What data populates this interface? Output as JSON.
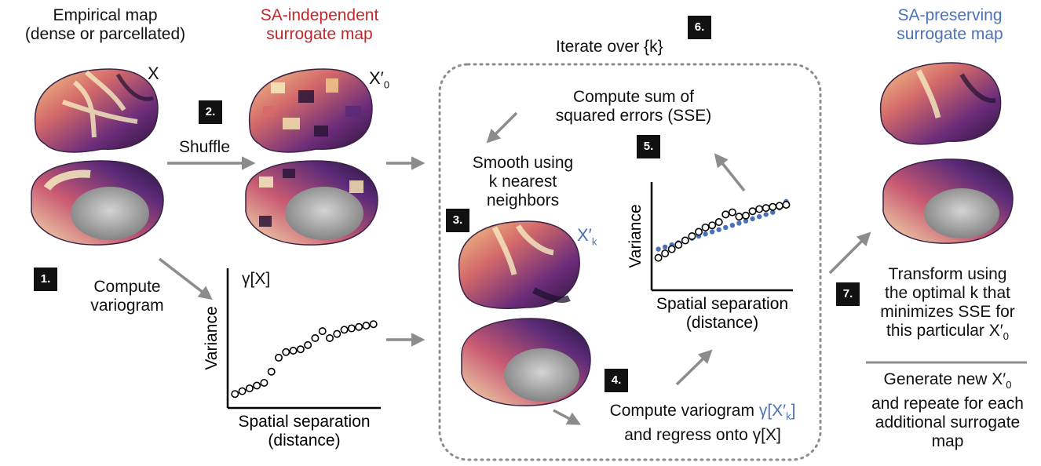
{
  "labels": {
    "empirical_line1": "Empirical map",
    "empirical_line2": "(dense or parcellated)",
    "x_symbol": "X",
    "independent_line1": "SA-independent",
    "independent_line2": "surrogate map",
    "x0_symbol": "X′",
    "x0_sub": "0",
    "iterate": "Iterate over {k}",
    "preserving_line1": "SA-preserving",
    "preserving_line2": "surrogate map",
    "shuffle": "Shuffle",
    "compute_variogram_line1": "Compute",
    "compute_variogram_line2": "variogram",
    "gamma_x": "γ[X]",
    "sse_line1": "Compute sum of",
    "sse_line2": "squared errors (SSE)",
    "smooth_line1": "Smooth using",
    "smooth_line2": "k nearest",
    "smooth_line3": "neighbors",
    "xk_symbol": "X′",
    "xk_sub": "k",
    "step4_line1_prefix": "Compute variogram ",
    "step4_gamma": "γ[X′",
    "step4_gamma_sub": "k",
    "step4_gamma_close": "]",
    "step4_line2": "and regress onto γ[X]",
    "transform_line1": "Transform using",
    "transform_line2": "the optimal k that",
    "transform_line3": "minimizes SSE for",
    "transform_line4_prefix": "this particular X′",
    "transform_sub": "0",
    "generate_line1_prefix": "Generate new X′",
    "generate_sub": "0",
    "generate_line2": "and repeate for each",
    "generate_line3": "additional surrogate",
    "generate_line4": "map"
  },
  "steps": [
    "1.",
    "2.",
    "3.",
    "4.",
    "5.",
    "6.",
    "7."
  ],
  "colors": {
    "red_title": "#c0282d",
    "blue_title": "#4a72b8",
    "arrow": "#8c8c8c",
    "badge": "#111111"
  },
  "chart_data": [
    {
      "type": "scatter",
      "title": "γ[X]",
      "xlabel": "Spatial separation\n(distance)",
      "ylabel": "Variance",
      "xlim": [
        0,
        21
      ],
      "ylim": [
        0,
        10
      ],
      "series": [
        {
          "name": "γ[X]",
          "marker": "open-circle",
          "x": [
            1,
            2,
            3,
            4,
            5,
            6,
            7,
            8,
            9,
            10,
            11,
            12,
            13,
            14,
            15,
            16,
            17,
            18,
            19,
            20
          ],
          "y": [
            1.0,
            1.2,
            1.4,
            1.6,
            1.8,
            2.6,
            3.6,
            4.0,
            4.1,
            4.2,
            4.5,
            5.0,
            5.5,
            5.0,
            5.3,
            5.6,
            5.7,
            5.8,
            5.9,
            6.0
          ]
        }
      ]
    },
    {
      "type": "scatter",
      "title": "",
      "xlabel": "Spatial separation\n(distance)",
      "ylabel": "Variance",
      "xlim": [
        0,
        21
      ],
      "ylim": [
        0,
        10
      ],
      "series": [
        {
          "name": "γ[X]",
          "marker": "open-circle",
          "x": [
            1,
            2,
            3,
            4,
            5,
            6,
            7,
            8,
            9,
            10,
            11,
            12,
            13,
            14,
            15,
            16,
            17,
            18,
            19,
            20
          ],
          "y": [
            3.0,
            3.4,
            3.8,
            4.2,
            4.6,
            5.0,
            5.4,
            5.8,
            6.0,
            6.3,
            7.0,
            7.2,
            6.8,
            6.9,
            7.3,
            7.5,
            7.6,
            7.7,
            7.8,
            7.9
          ]
        },
        {
          "name": "γ[X′k]",
          "marker": "filled-dot",
          "color": "#4a72b8",
          "x": [
            1,
            2,
            3,
            4,
            5,
            6,
            7,
            8,
            9,
            10,
            11,
            12,
            13,
            14,
            15,
            16,
            17,
            18,
            19,
            20
          ],
          "y": [
            3.8,
            4.0,
            4.2,
            4.4,
            4.6,
            4.8,
            5.0,
            5.2,
            5.4,
            5.6,
            5.8,
            6.0,
            6.2,
            6.4,
            6.6,
            6.8,
            7.0,
            7.2,
            7.6,
            8.2
          ]
        }
      ]
    }
  ]
}
